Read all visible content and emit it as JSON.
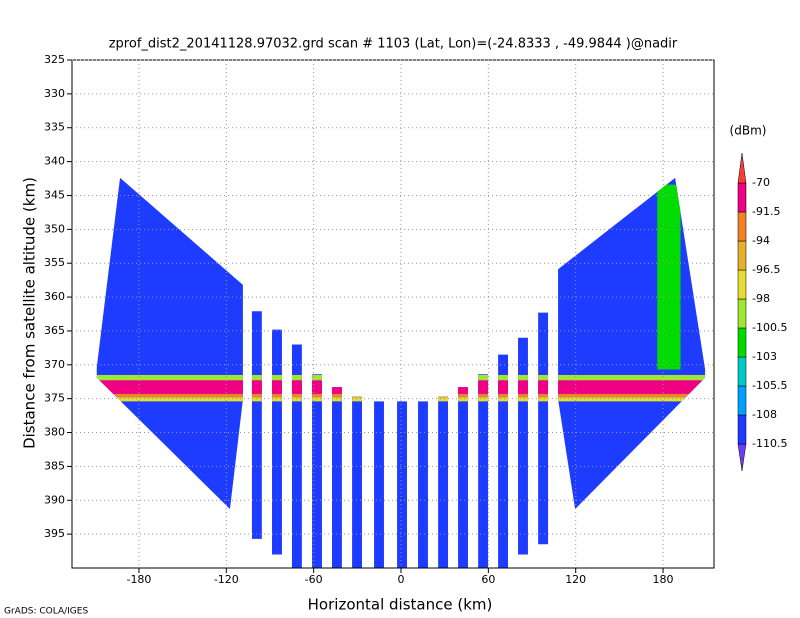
{
  "chart_data": {
    "type": "field",
    "title": "zprof_dist2_20141128.97032.grd  scan # 1103  (Lat, Lon)=(-24.8333 , -49.9844 )@nadir",
    "x_label": "Horizontal distance (km)",
    "y_label": "Distance from satellite altitude (km)",
    "footer": "GrADS: COLA/IGES",
    "xlim": [
      -226,
      215
    ],
    "xticks": [
      -180,
      -120,
      -60,
      0,
      60,
      120,
      180
    ],
    "ylim": [
      325,
      400
    ],
    "yticks": [
      325,
      330,
      335,
      340,
      345,
      350,
      355,
      360,
      365,
      370,
      375,
      380,
      385,
      390,
      395
    ],
    "y_reversed": true,
    "grid": true,
    "colorbar": {
      "unit": "(dBm)",
      "levels": [
        -110.5,
        -108,
        -105.5,
        -103,
        -100.5,
        -98,
        -96.5,
        -94,
        -91.5,
        -70
      ],
      "colors": [
        "#6e3cf5",
        "#1e3cff",
        "#00a0ff",
        "#00c8c8",
        "#00dc00",
        "#a0e632",
        "#e6dc32",
        "#e6af2d",
        "#f08228",
        "#f00082",
        "#fa3c3c"
      ]
    },
    "regions": [
      {
        "x": [
          -193,
          -108.6,
          -108.6,
          -117.5,
          -209,
          -209
        ],
        "y": [
          342.4,
          358.2,
          375.1,
          391.3,
          371.9,
          370.4
        ],
        "value": -109
      },
      {
        "x": [
          107.9,
          188.3,
          208.9,
          208.9,
          119.6,
          107.9
        ],
        "y": [
          355.9,
          342.4,
          370.7,
          371.9,
          391.3,
          375.1
        ],
        "value": -109
      },
      {
        "x": [
          -102.4,
          -95.6,
          -95.6,
          -102.4
        ],
        "y": [
          362.1,
          362.1,
          395.7,
          395.7
        ],
        "value": -109
      },
      {
        "x": [
          -88.6,
          -81.8,
          -81.8,
          -88.6
        ],
        "y": [
          364.8,
          364.8,
          398,
          398
        ],
        "value": -109
      },
      {
        "x": [
          -74.9,
          -68.1,
          -68.1,
          -74.9
        ],
        "y": [
          367,
          367,
          400,
          400
        ],
        "value": -109
      },
      {
        "x": [
          -61.1,
          -54.3,
          -54.3,
          -61.1
        ],
        "y": [
          371.4,
          371.4,
          400,
          400
        ],
        "value": -109
      },
      {
        "x": [
          -47.4,
          -40.6,
          -40.6,
          -47.4
        ],
        "y": [
          373.3,
          373.3,
          400,
          400
        ],
        "value": -109
      },
      {
        "x": [
          -33.6,
          -26.8,
          -26.8,
          -33.6
        ],
        "y": [
          374.7,
          374.7,
          400,
          400
        ],
        "value": -109
      },
      {
        "x": [
          -18.5,
          -11.7,
          -11.7,
          -18.5
        ],
        "y": [
          375.4,
          375.4,
          400,
          400
        ],
        "value": -109
      },
      {
        "x": [
          -2.7,
          4.1,
          4.1,
          -2.7
        ],
        "y": [
          375.4,
          375.4,
          400,
          400
        ],
        "value": -109
      },
      {
        "x": [
          11.7,
          18.5,
          18.5,
          11.7
        ],
        "y": [
          375.4,
          375.4,
          400,
          400
        ],
        "value": -109
      },
      {
        "x": [
          25.5,
          32.3,
          32.3,
          25.5
        ],
        "y": [
          374.7,
          374.7,
          400,
          400
        ],
        "value": -109
      },
      {
        "x": [
          39.2,
          46,
          46,
          39.2
        ],
        "y": [
          373.3,
          373.3,
          400,
          400
        ],
        "value": -109
      },
      {
        "x": [
          53,
          59.8,
          59.8,
          53
        ],
        "y": [
          371.4,
          371.4,
          400,
          400
        ],
        "value": -109
      },
      {
        "x": [
          66.7,
          73.5,
          73.5,
          66.7
        ],
        "y": [
          368.5,
          368.5,
          400,
          400
        ],
        "value": -109
      },
      {
        "x": [
          80.4,
          87.2,
          87.2,
          80.4
        ],
        "y": [
          366,
          366,
          398,
          398
        ],
        "value": -109
      },
      {
        "x": [
          94.2,
          101,
          101,
          94.2
        ],
        "y": [
          362.3,
          362.3,
          396.5,
          396.5
        ],
        "value": -109
      }
    ],
    "bands": [
      {
        "x": [
          176,
          192
        ],
        "y": [
          343.4,
          370.7
        ],
        "value": -101
      },
      {
        "x": [
          -215,
          215
        ],
        "y": [
          371.5,
          372.3
        ],
        "value": -99
      },
      {
        "x": [
          -215,
          215
        ],
        "y": [
          372.3,
          374.3
        ],
        "value": -85
      },
      {
        "x": [
          -215,
          215
        ],
        "y": [
          374.3,
          374.8
        ],
        "value": -93
      },
      {
        "x": [
          -215,
          215
        ],
        "y": [
          374.8,
          375.4
        ],
        "value": -97
      }
    ]
  }
}
